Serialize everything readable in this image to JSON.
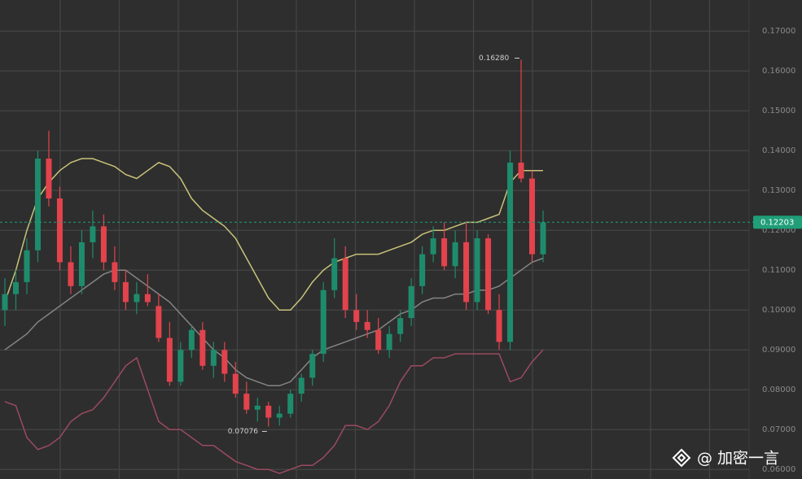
{
  "chart_data": {
    "type": "candlestick",
    "open": [
      0.1,
      0.104,
      0.107,
      0.115,
      0.138,
      0.128,
      0.112,
      0.106,
      0.117,
      0.121,
      0.112,
      0.107,
      0.102,
      0.104,
      0.101,
      0.093,
      0.082,
      0.09,
      0.095,
      0.086,
      0.09,
      0.084,
      0.079,
      0.075,
      0.076,
      0.073,
      0.074,
      0.079,
      0.083,
      0.089,
      0.105,
      0.113,
      0.1,
      0.097,
      0.095,
      0.09,
      0.094,
      0.098,
      0.106,
      0.114,
      0.118,
      0.111,
      0.117,
      0.102,
      0.118,
      0.1,
      0.092,
      0.137,
      0.133,
      0.114
    ],
    "high": [
      0.108,
      0.11,
      0.118,
      0.14,
      0.145,
      0.131,
      0.116,
      0.12,
      0.125,
      0.124,
      0.116,
      0.11,
      0.107,
      0.109,
      0.104,
      0.097,
      0.092,
      0.096,
      0.097,
      0.092,
      0.092,
      0.087,
      0.082,
      0.078,
      0.077,
      0.076,
      0.08,
      0.084,
      0.09,
      0.107,
      0.118,
      0.116,
      0.104,
      0.1,
      0.098,
      0.096,
      0.1,
      0.108,
      0.116,
      0.121,
      0.122,
      0.12,
      0.122,
      0.12,
      0.119,
      0.104,
      0.14,
      0.1628,
      0.135,
      0.125
    ],
    "low": [
      0.096,
      0.1,
      0.104,
      0.112,
      0.126,
      0.11,
      0.104,
      0.104,
      0.113,
      0.11,
      0.105,
      0.1,
      0.099,
      0.101,
      0.092,
      0.081,
      0.081,
      0.088,
      0.085,
      0.083,
      0.082,
      0.078,
      0.074,
      0.072,
      0.07076,
      0.071,
      0.073,
      0.077,
      0.081,
      0.087,
      0.103,
      0.098,
      0.095,
      0.093,
      0.089,
      0.088,
      0.092,
      0.096,
      0.104,
      0.112,
      0.11,
      0.108,
      0.1,
      0.1,
      0.099,
      0.09,
      0.09,
      0.132,
      0.112,
      0.112
    ],
    "close": [
      0.104,
      0.107,
      0.115,
      0.138,
      0.128,
      0.112,
      0.106,
      0.117,
      0.121,
      0.112,
      0.107,
      0.102,
      0.104,
      0.102,
      0.093,
      0.082,
      0.09,
      0.095,
      0.086,
      0.09,
      0.084,
      0.079,
      0.075,
      0.076,
      0.073,
      0.074,
      0.079,
      0.083,
      0.089,
      0.105,
      0.113,
      0.1,
      0.097,
      0.095,
      0.09,
      0.094,
      0.098,
      0.106,
      0.114,
      0.118,
      0.111,
      0.117,
      0.102,
      0.118,
      0.1,
      0.092,
      0.137,
      0.133,
      0.114,
      0.122
    ],
    "up_color": "#1e8c6c",
    "down_color": "#e2434c",
    "series": [
      {
        "color": "#c9c27a",
        "values": [
          0.102,
          0.11,
          0.12,
          0.128,
          0.132,
          0.135,
          0.137,
          0.138,
          0.138,
          0.137,
          0.136,
          0.134,
          0.133,
          0.135,
          0.137,
          0.136,
          0.133,
          0.128,
          0.125,
          0.123,
          0.121,
          0.118,
          0.113,
          0.108,
          0.103,
          0.1,
          0.1,
          0.103,
          0.107,
          0.11,
          0.112,
          0.113,
          0.114,
          0.114,
          0.114,
          0.115,
          0.116,
          0.117,
          0.119,
          0.12,
          0.12,
          0.121,
          0.122,
          0.122,
          0.123,
          0.124,
          0.132,
          0.135,
          0.135,
          0.135
        ]
      },
      {
        "color": "#858585",
        "values": [
          0.09,
          0.092,
          0.094,
          0.097,
          0.099,
          0.101,
          0.103,
          0.105,
          0.107,
          0.109,
          0.11,
          0.11,
          0.108,
          0.106,
          0.104,
          0.102,
          0.099,
          0.096,
          0.093,
          0.09,
          0.088,
          0.085,
          0.083,
          0.082,
          0.081,
          0.081,
          0.082,
          0.085,
          0.088,
          0.09,
          0.091,
          0.092,
          0.093,
          0.094,
          0.095,
          0.097,
          0.099,
          0.1,
          0.102,
          0.103,
          0.103,
          0.104,
          0.104,
          0.105,
          0.105,
          0.106,
          0.108,
          0.11,
          0.112,
          0.113
        ]
      },
      {
        "color": "#9b4a60",
        "values": [
          0.077,
          0.076,
          0.068,
          0.065,
          0.066,
          0.068,
          0.072,
          0.074,
          0.075,
          0.078,
          0.082,
          0.086,
          0.088,
          0.08,
          0.072,
          0.07,
          0.07,
          0.068,
          0.066,
          0.066,
          0.064,
          0.062,
          0.061,
          0.06,
          0.06,
          0.059,
          0.06,
          0.061,
          0.061,
          0.063,
          0.066,
          0.071,
          0.071,
          0.07,
          0.072,
          0.076,
          0.082,
          0.086,
          0.086,
          0.088,
          0.088,
          0.089,
          0.089,
          0.089,
          0.089,
          0.089,
          0.082,
          0.083,
          0.087,
          0.09
        ]
      }
    ],
    "ylim": [
      0.0576,
      0.1778
    ],
    "yticks": [
      {
        "value": 0.17,
        "label": "0.17000"
      },
      {
        "value": 0.16,
        "label": "0.16000"
      },
      {
        "value": 0.15,
        "label": "0.15000"
      },
      {
        "value": 0.14,
        "label": "0.14000"
      },
      {
        "value": 0.13,
        "label": "0.13000"
      },
      {
        "value": 0.12,
        "label": "0.12000"
      },
      {
        "value": 0.11,
        "label": "0.11000"
      },
      {
        "value": 0.1,
        "label": "0.10000"
      },
      {
        "value": 0.09,
        "label": "0.09000"
      },
      {
        "value": 0.08,
        "label": "0.08000"
      },
      {
        "value": 0.07,
        "label": "0.07000"
      },
      {
        "value": 0.06,
        "label": "0.06000"
      }
    ],
    "grid": true,
    "high_label": "0.16280",
    "low_label": "0.07076",
    "last_price": {
      "value": 0.12203,
      "label": "0.12203"
    },
    "last_price_color": "#1f9e78",
    "watermark": "@ 加密一言"
  }
}
